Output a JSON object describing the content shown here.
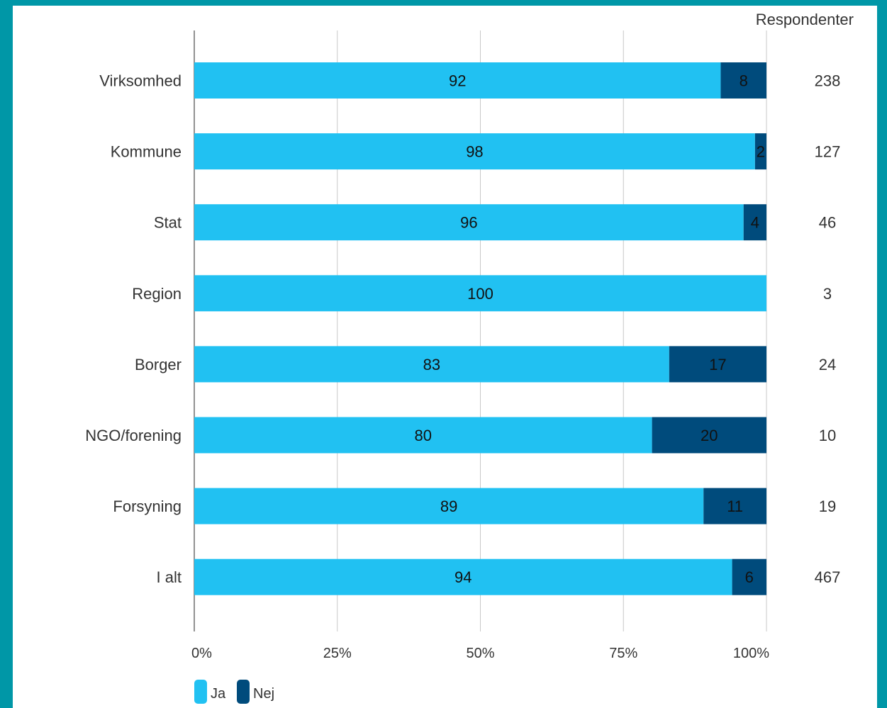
{
  "chart_data": {
    "type": "bar",
    "orientation": "horizontal",
    "stacked": true,
    "categories": [
      "Virksomhed",
      "Kommune",
      "Stat",
      "Region",
      "Borger",
      "NGO/forening",
      "Forsyning",
      "I alt"
    ],
    "series": [
      {
        "name": "Ja",
        "color": "#21c1f2",
        "values": [
          92,
          98,
          96,
          100,
          83,
          80,
          89,
          94
        ]
      },
      {
        "name": "Nej",
        "color": "#004b7c",
        "values": [
          8,
          2,
          4,
          0,
          17,
          20,
          11,
          6
        ]
      }
    ],
    "xlim": [
      0,
      100
    ],
    "xticks": [
      "0%",
      "25%",
      "50%",
      "75%",
      "100%"
    ],
    "grid": true,
    "legend_position": "bottom-left",
    "right_column": {
      "header": "Respondenter",
      "values": [
        "238",
        "127",
        "46",
        "3",
        "24",
        "10",
        "19",
        "467"
      ]
    }
  }
}
